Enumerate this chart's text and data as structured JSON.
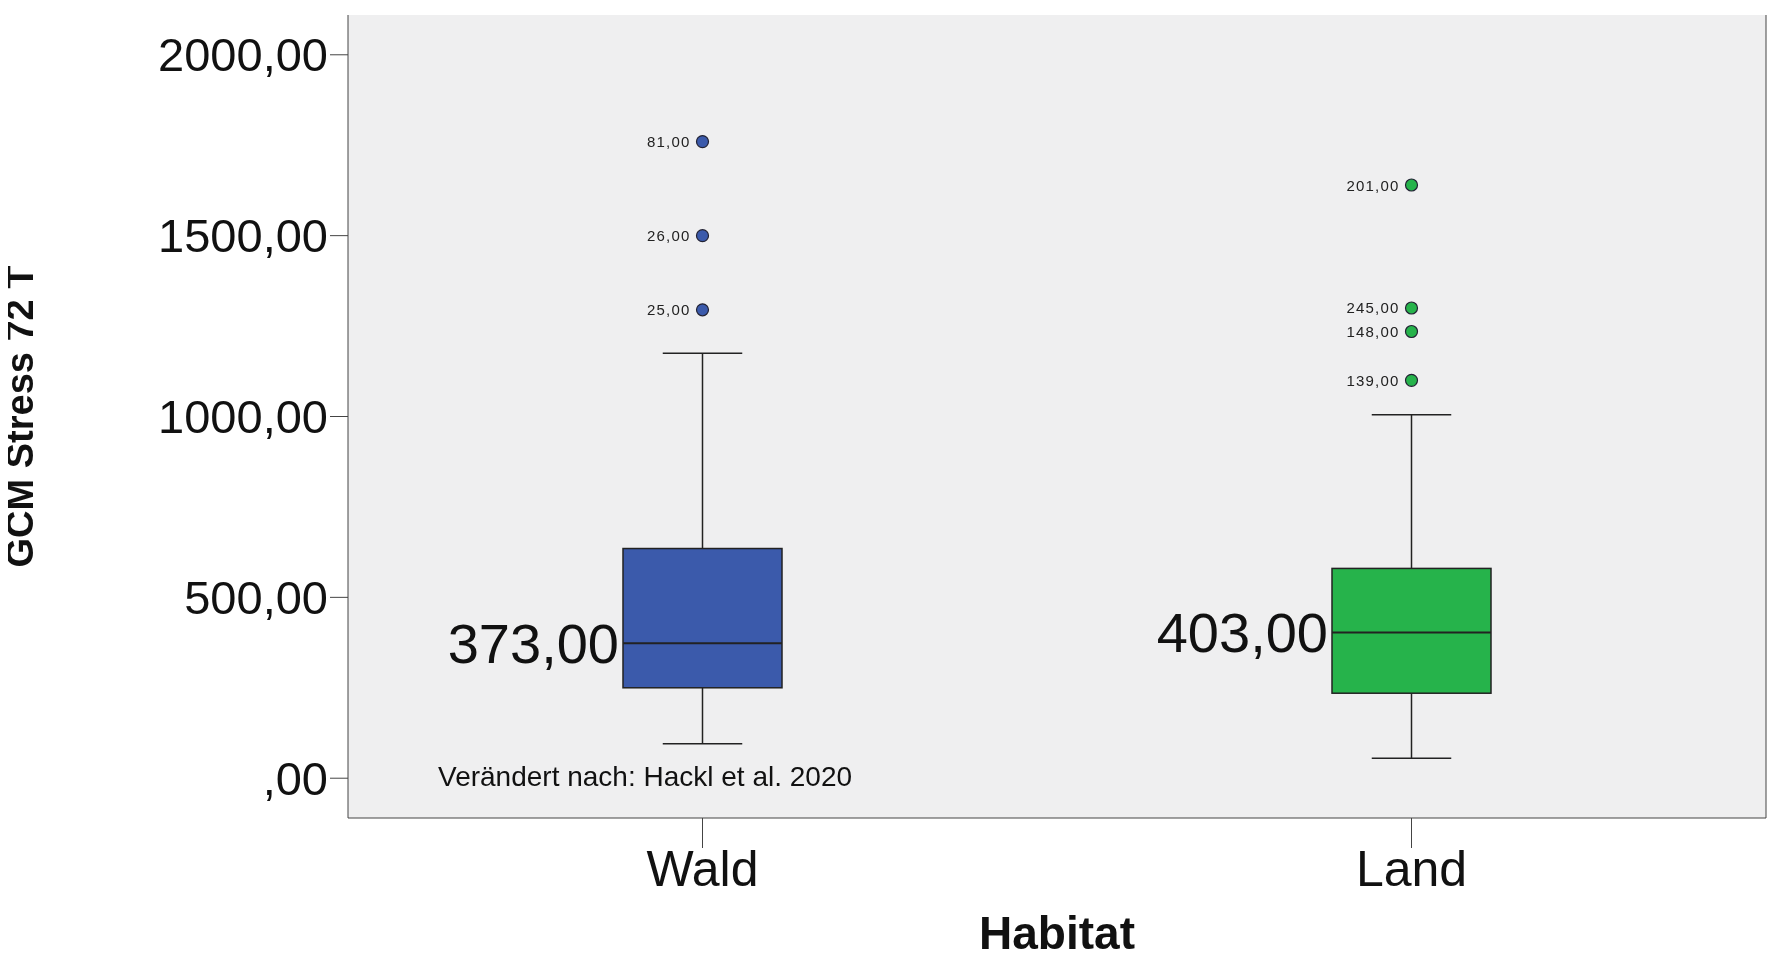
{
  "chart_data": {
    "type": "box",
    "xlabel": "Habitat",
    "ylabel": "GCM Stress 72 T",
    "categories": [
      "Wald",
      "Land"
    ],
    "colors": [
      "#3b5aab",
      "#26b34b"
    ],
    "boxes": [
      {
        "low": 95,
        "q1": 250,
        "median": 373,
        "q3": 635,
        "high": 1175,
        "outliers": [
          1295,
          1500,
          1760
        ]
      },
      {
        "low": 55,
        "q1": 235,
        "median": 403,
        "q3": 580,
        "high": 1005,
        "outliers": [
          1100,
          1235,
          1300,
          1640
        ]
      }
    ],
    "ylim": [
      -110,
      2110
    ],
    "yticks": [
      {
        "value": 0,
        "label": ",00"
      },
      {
        "value": 500,
        "label": "500,00"
      },
      {
        "value": 1000,
        "label": "1000,00"
      },
      {
        "value": 1500,
        "label": "1500,00"
      },
      {
        "value": 2000,
        "label": "2000,00"
      }
    ],
    "annotations": [
      {
        "text": "373,00",
        "x": "Wald",
        "y": 373
      },
      {
        "text": "403,00",
        "x": "Land",
        "y": 403
      },
      "25,00",
      "26,00",
      "81,00",
      "139,00",
      "148,00",
      "245,00",
      "201,00",
      "Verändert nach: Hackl et al. 2020"
    ]
  }
}
